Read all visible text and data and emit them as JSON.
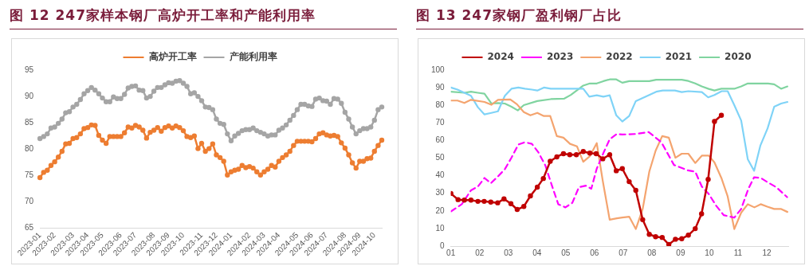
{
  "chart_data": [
    {
      "type": "line",
      "title": "图 12 247家样本钢厂高炉开工率和产能利用率",
      "categories": [
        "2023-01",
        null,
        null,
        null,
        "2023-02",
        null,
        null,
        null,
        null,
        "2023-03",
        null,
        null,
        null,
        "2023-04",
        null,
        null,
        null,
        "2023-05",
        null,
        null,
        null,
        null,
        "2023-06",
        null,
        null,
        null,
        "2023-07",
        null,
        null,
        null,
        null,
        "2023-08",
        null,
        null,
        null,
        "2023-09",
        null,
        null,
        null,
        "2023-10",
        null,
        null,
        null,
        null,
        "2023-11",
        null,
        null,
        null,
        "2023-12",
        null,
        null,
        null,
        "2024-01",
        null,
        null,
        null,
        null,
        "2024-02",
        null,
        null,
        null,
        "2024-03",
        null,
        null,
        null,
        "2024-04",
        null,
        null,
        null,
        null,
        "2024-05",
        null,
        null,
        null,
        "2024-06",
        null,
        null,
        null,
        "2024-07",
        null,
        null,
        null,
        null,
        "2024-08",
        null,
        null,
        null,
        "2024-09",
        null,
        null,
        null,
        "2024-10",
        null,
        null
      ],
      "series": [
        {
          "name": "高炉开工率",
          "color": "#ed7d31",
          "values": [
            74.6,
            75.6,
            76.0,
            76.9,
            77.6,
            78.5,
            79.6,
            81.0,
            81.1,
            82.0,
            82.2,
            82.9,
            83.9,
            84.1,
            84.6,
            84.5,
            82.6,
            81.7,
            81.1,
            82.4,
            82.4,
            82.4,
            82.4,
            83.1,
            84.2,
            84.0,
            84.5,
            84.2,
            83.6,
            82.1,
            83.2,
            83.6,
            84.1,
            83.4,
            84.1,
            84.4,
            84.0,
            84.4,
            84.1,
            83.5,
            82.4,
            82.2,
            82.5,
            80.1,
            81.1,
            79.6,
            80.1,
            81.0,
            78.9,
            78.4,
            77.7,
            75.1,
            75.7,
            76.0,
            76.2,
            76.9,
            76.5,
            76.7,
            76.4,
            75.7,
            75.1,
            75.7,
            76.2,
            76.9,
            76.6,
            77.7,
            78.4,
            78.9,
            79.6,
            80.7,
            81.5,
            81.5,
            81.5,
            81.5,
            81.4,
            82.0,
            82.9,
            83.1,
            82.7,
            82.5,
            82.6,
            82.4,
            81.2,
            80.2,
            78.9,
            77.4,
            76.4,
            77.7,
            77.7,
            78.2,
            78.3,
            79.6,
            80.7,
            81.7
          ]
        },
        {
          "name": "产能利用率",
          "color": "#a5a5a5",
          "values": [
            82.0,
            82.4,
            82.9,
            84.0,
            84.2,
            84.9,
            85.7,
            86.9,
            87.1,
            88.0,
            88.5,
            89.4,
            90.5,
            91.1,
            91.7,
            91.2,
            90.5,
            89.7,
            89.0,
            89.0,
            89.9,
            89.6,
            89.6,
            90.4,
            91.6,
            91.9,
            92.0,
            91.2,
            91.1,
            89.7,
            90.0,
            91.0,
            91.7,
            91.7,
            92.2,
            92.6,
            92.5,
            92.9,
            93.0,
            92.5,
            91.9,
            90.5,
            90.7,
            90.0,
            89.2,
            88.0,
            87.9,
            87.5,
            85.7,
            84.9,
            84.7,
            82.9,
            81.6,
            82.5,
            83.0,
            83.5,
            83.7,
            83.7,
            84.0,
            83.5,
            83.2,
            82.9,
            82.5,
            82.7,
            82.7,
            83.6,
            84.0,
            84.6,
            85.5,
            86.4,
            87.5,
            88.5,
            88.5,
            88.2,
            88.1,
            89.5,
            89.7,
            89.2,
            89.1,
            88.5,
            89.6,
            89.5,
            88.7,
            87.0,
            85.7,
            84.2,
            82.9,
            83.5,
            83.9,
            83.9,
            84.2,
            85.5,
            87.5,
            88.0
          ]
        }
      ],
      "ylim": [
        65,
        95
      ],
      "yticks": [
        65,
        70,
        75,
        80,
        85,
        90,
        95
      ],
      "grid": false,
      "legend": "top",
      "marker": "circle"
    },
    {
      "type": "line",
      "title": "图 13 247家钢厂盈利钢厂占比",
      "xlim": [
        1,
        12.75
      ],
      "xticks": [
        {
          "value": 1,
          "label": "01"
        },
        {
          "value": 2,
          "label": "02"
        },
        {
          "value": 3,
          "label": "03"
        },
        {
          "value": 4,
          "label": "04"
        },
        {
          "value": 5,
          "label": "05"
        },
        {
          "value": 6,
          "label": "06"
        },
        {
          "value": 7,
          "label": "07"
        },
        {
          "value": 8,
          "label": "08"
        },
        {
          "value": 9,
          "label": "09"
        },
        {
          "value": 10,
          "label": "10"
        },
        {
          "value": 11,
          "label": "11"
        },
        {
          "value": 12,
          "label": "12"
        }
      ],
      "ylim": [
        0,
        100
      ],
      "yticks": [
        0,
        10,
        20,
        30,
        40,
        50,
        60,
        70,
        80,
        90,
        100
      ],
      "grid": false,
      "legend": "top",
      "series": [
        {
          "name": "2024",
          "color": "#c00000",
          "marker": "circle",
          "line_style": "solid",
          "x": [
            1.0,
            1.25,
            1.47,
            1.7,
            1.94,
            2.16,
            2.39,
            2.63,
            2.85,
            3.09,
            3.31,
            3.54,
            3.77,
            4.01,
            4.22,
            4.46,
            4.69,
            4.92,
            5.14,
            5.37,
            5.61,
            5.84,
            6.06,
            6.29,
            6.53,
            6.76,
            6.97,
            7.21,
            7.44,
            7.68,
            7.91,
            8.13,
            8.36,
            8.59,
            8.82,
            9.04,
            9.27,
            9.51,
            9.73,
            9.96,
            10.18,
            10.42
          ],
          "values": [
            29.9,
            26.4,
            26.1,
            26.1,
            25.4,
            25.4,
            25.0,
            24.6,
            26.8,
            24.1,
            20.8,
            22.5,
            28.5,
            33.5,
            38.4,
            48.2,
            50.7,
            52.5,
            51.9,
            51.9,
            53.7,
            52.8,
            52.5,
            49.6,
            51.9,
            42.8,
            44.0,
            36.6,
            31.7,
            15.0,
            6.7,
            5.3,
            4.9,
            0.9,
            3.9,
            4.2,
            6.2,
            9.9,
            18.3,
            37.9,
            70.8,
            74.3
          ]
        },
        {
          "name": "2023",
          "color": "#ff00ff",
          "marker": "none",
          "line_style": "dashed",
          "x": [
            1.0,
            1.38,
            1.7,
            1.94,
            2.17,
            2.39,
            2.64,
            2.88,
            3.11,
            3.35,
            3.58,
            3.82,
            4.05,
            4.29,
            4.52,
            4.74,
            4.99,
            5.23,
            5.46,
            5.7,
            5.89,
            6.08,
            6.31,
            6.53,
            6.78,
            6.97,
            7.44,
            7.89,
            8.33,
            8.77,
            9.24,
            9.51,
            9.74,
            9.98,
            10.24,
            10.5,
            10.87,
            11.11,
            11.36,
            11.56,
            11.79,
            12.05,
            12.33,
            12.71
          ],
          "values": [
            19.7,
            23.8,
            31.7,
            33.8,
            38.7,
            35.7,
            39.6,
            43.7,
            50.2,
            57.7,
            59.0,
            58.1,
            53.2,
            45.8,
            34.3,
            23.8,
            22.0,
            24.6,
            33.5,
            34.3,
            32.6,
            44.0,
            52.8,
            60.7,
            63.7,
            63.4,
            63.7,
            64.8,
            59.0,
            46.1,
            43.1,
            42.3,
            33.8,
            29.6,
            22.9,
            17.6,
            16.2,
            21.1,
            32.6,
            39.1,
            38.7,
            36.1,
            33.5,
            27.8
          ]
        },
        {
          "name": "2022",
          "color": "#f4a46f",
          "marker": "none",
          "line_style": "solid",
          "x": [
            1.0,
            1.23,
            1.47,
            1.7,
            2.17,
            2.41,
            2.64,
            3.07,
            3.3,
            3.54,
            3.77,
            4.01,
            4.24,
            4.46,
            4.69,
            4.92,
            5.15,
            5.39,
            5.61,
            5.84,
            6.08,
            6.29,
            6.53,
            6.78,
            6.97,
            7.21,
            7.44,
            7.68,
            7.91,
            8.13,
            8.36,
            8.59,
            8.82,
            9.04,
            9.27,
            9.51,
            9.74,
            9.98,
            10.18,
            10.42,
            10.64,
            10.87,
            11.11,
            11.34,
            11.57,
            11.79,
            12.02,
            12.26,
            12.49,
            12.72
          ],
          "values": [
            82.7,
            82.7,
            81.3,
            83.1,
            81.9,
            80.3,
            83.1,
            83.3,
            80.6,
            76.1,
            74.3,
            75.7,
            73.9,
            73.9,
            62.5,
            61.6,
            58.1,
            56.7,
            47.9,
            51.1,
            58.5,
            37.0,
            15.0,
            15.8,
            16.2,
            16.7,
            9.7,
            21.1,
            42.3,
            54.2,
            62.5,
            61.6,
            50.2,
            52.5,
            52.5,
            47.2,
            51.4,
            51.4,
            47.5,
            38.7,
            28.2,
            9.7,
            19.0,
            23.8,
            22.0,
            23.8,
            22.4,
            21.1,
            21.1,
            19.4
          ]
        },
        {
          "name": "2021",
          "color": "#7fd3f7",
          "marker": "none",
          "line_style": "solid",
          "x": [
            1.0,
            1.23,
            1.47,
            1.7,
            1.94,
            2.17,
            2.41,
            2.64,
            2.88,
            3.11,
            3.35,
            3.58,
            3.82,
            4.01,
            4.24,
            4.48,
            4.95,
            5.42,
            5.61,
            5.82,
            6.08,
            6.31,
            6.53,
            6.76,
            6.97,
            7.21,
            7.44,
            7.91,
            8.15,
            8.38,
            8.8,
            9.04,
            9.27,
            9.74,
            9.96,
            10.18,
            10.43,
            10.64,
            10.87,
            11.11,
            11.34,
            11.56,
            11.78,
            12.03,
            12.26,
            12.5,
            12.72
          ],
          "values": [
            90.1,
            88.9,
            87.1,
            85.4,
            78.9,
            74.8,
            75.7,
            76.6,
            85.4,
            89.4,
            90.1,
            89.4,
            88.9,
            88.4,
            90.1,
            89.4,
            89.4,
            89.4,
            89.4,
            84.9,
            85.7,
            84.9,
            85.7,
            74.3,
            70.8,
            73.9,
            82.4,
            85.9,
            87.7,
            88.4,
            88.4,
            87.5,
            88.0,
            87.5,
            84.5,
            85.9,
            88.0,
            88.0,
            80.1,
            71.3,
            49.3,
            42.8,
            57.2,
            66.9,
            79.2,
            81.0,
            81.9
          ]
        },
        {
          "name": "2020",
          "color": "#80d4a0",
          "marker": "none",
          "line_style": "solid",
          "x": [
            1.0,
            1.47,
            1.7,
            1.94,
            2.17,
            2.41,
            2.64,
            2.88,
            3.11,
            3.33,
            3.54,
            4.01,
            4.48,
            4.95,
            5.18,
            5.42,
            5.61,
            5.84,
            6.08,
            6.31,
            6.53,
            6.76,
            6.97,
            7.21,
            7.91,
            8.15,
            9.04,
            9.27,
            9.51,
            9.74,
            9.98,
            10.18,
            10.42,
            10.87,
            11.11,
            11.34,
            12.05,
            12.26,
            12.5,
            12.72
          ],
          "values": [
            87.7,
            87.1,
            87.7,
            87.1,
            86.6,
            81.0,
            81.3,
            81.0,
            79.2,
            77.1,
            80.1,
            82.4,
            83.5,
            83.8,
            85.9,
            88.9,
            91.2,
            92.4,
            92.4,
            93.7,
            94.7,
            94.7,
            92.8,
            93.7,
            93.7,
            94.5,
            94.5,
            93.8,
            92.4,
            90.7,
            89.3,
            88.4,
            89.4,
            89.4,
            90.7,
            92.4,
            92.4,
            91.9,
            89.4,
            90.7
          ]
        }
      ]
    }
  ]
}
